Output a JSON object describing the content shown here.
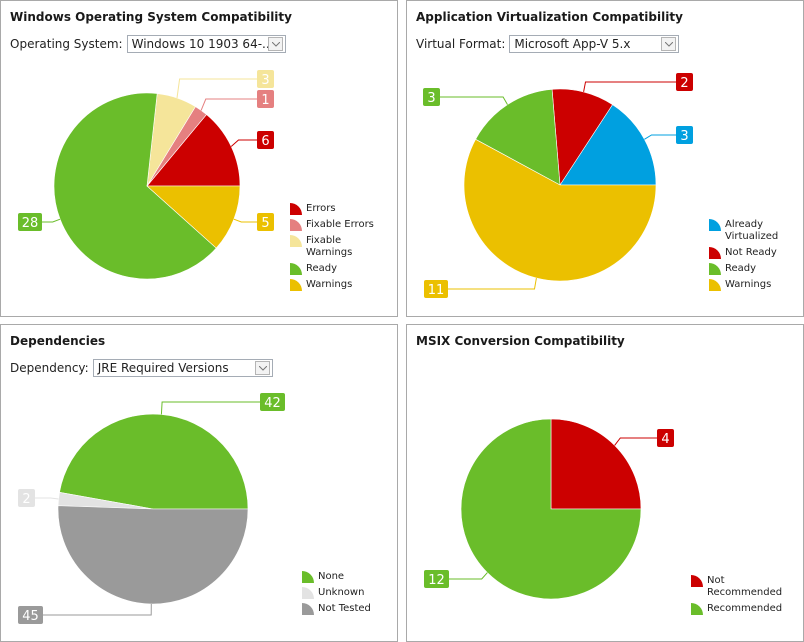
{
  "panels": {
    "os": {
      "title": "Windows Operating System Compatibility",
      "select_label": "Operating System:",
      "select_value": "Windows 10 1903 64-..."
    },
    "virt": {
      "title": "Application Virtualization Compatibility",
      "select_label": "Virtual Format:",
      "select_value": "Microsoft App-V 5.x"
    },
    "deps": {
      "title": "Dependencies",
      "select_label": "Dependency:",
      "select_value": "JRE Required Versions"
    },
    "msix": {
      "title": "MSIX Conversion Compatibility"
    }
  },
  "chart_data": [
    {
      "type": "pie",
      "title": "Windows Operating System Compatibility",
      "legend_position": "bottom-right",
      "slices": [
        {
          "label": "Errors",
          "value": 6,
          "color": "#cc0000",
          "value_text": "6",
          "legend": [
            "Errors"
          ]
        },
        {
          "label": "Fixable Errors",
          "value": 1,
          "color": "#e58080",
          "value_text": "1",
          "legend": [
            "Fixable Errors"
          ]
        },
        {
          "label": "Fixable Warnings",
          "value": 3,
          "color": "#f5e59a",
          "value_text": "3",
          "legend": [
            "Fixable",
            "Warnings"
          ]
        },
        {
          "label": "Ready",
          "value": 28,
          "color": "#6abd2a",
          "value_text": "28",
          "legend": [
            "Ready"
          ]
        },
        {
          "label": "Warnings",
          "value": 5,
          "color": "#ebc000",
          "value_text": "5",
          "legend": [
            "Warnings"
          ]
        }
      ]
    },
    {
      "type": "pie",
      "title": "Application Virtualization Compatibility",
      "legend_position": "bottom-right",
      "slices": [
        {
          "label": "Already Virtualized",
          "value": 3,
          "color": "#00a0e0",
          "value_text": "3",
          "legend": [
            "Already",
            "Virtualized"
          ]
        },
        {
          "label": "Not Ready",
          "value": 2,
          "color": "#cc0000",
          "value_text": "2",
          "legend": [
            "Not Ready"
          ]
        },
        {
          "label": "Ready",
          "value": 3,
          "color": "#6abd2a",
          "value_text": "3",
          "legend": [
            "Ready"
          ]
        },
        {
          "label": "Warnings",
          "value": 11,
          "color": "#ebc000",
          "value_text": "11",
          "legend": [
            "Warnings"
          ]
        }
      ]
    },
    {
      "type": "pie",
      "title": "Dependencies",
      "legend_position": "bottom-right",
      "slices": [
        {
          "label": "None",
          "value": 42,
          "color": "#6abd2a",
          "value_text": "42",
          "legend": [
            "None"
          ]
        },
        {
          "label": "Unknown",
          "value": 2,
          "color": "#e3e3e3",
          "value_text": "2",
          "legend": [
            "Unknown"
          ]
        },
        {
          "label": "Not Tested",
          "value": 45,
          "color": "#9a9a9a",
          "value_text": "45",
          "legend": [
            "Not Tested"
          ]
        }
      ]
    },
    {
      "type": "pie",
      "title": "MSIX Conversion Compatibility",
      "legend_position": "bottom-right",
      "slices": [
        {
          "label": "Not Recommended",
          "value": 4,
          "color": "#cc0000",
          "value_text": "4",
          "legend": [
            "Not",
            "Recommended"
          ]
        },
        {
          "label": "Recommended",
          "value": 12,
          "color": "#6abd2a",
          "value_text": "12",
          "legend": [
            "Recommended"
          ]
        }
      ]
    }
  ]
}
